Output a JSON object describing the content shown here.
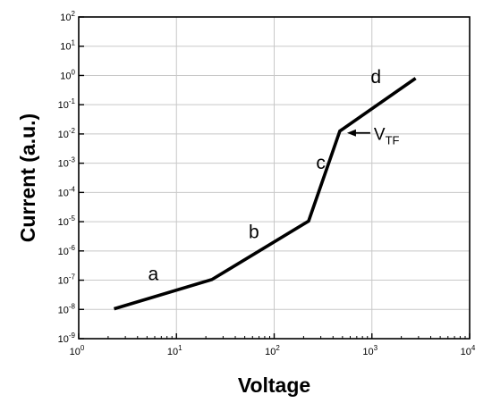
{
  "chart_data": {
    "type": "line",
    "xlabel": "Voltage",
    "ylabel": "Current (a.u.)",
    "x_scale": "log",
    "y_scale": "log",
    "xlim": [
      1,
      10000
    ],
    "ylim": [
      1e-09,
      100
    ],
    "grid": true,
    "x_ticks": [
      {
        "base": "10",
        "exp": "0",
        "value": 1
      },
      {
        "base": "10",
        "exp": "1",
        "value": 10
      },
      {
        "base": "10",
        "exp": "2",
        "value": 100
      },
      {
        "base": "10",
        "exp": "3",
        "value": 1000
      },
      {
        "base": "10",
        "exp": "4",
        "value": 10000
      }
    ],
    "y_ticks": [
      {
        "base": "10",
        "exp": "-9",
        "value": 1e-09
      },
      {
        "base": "10",
        "exp": "-8",
        "value": 1e-08
      },
      {
        "base": "10",
        "exp": "-7",
        "value": 1e-07
      },
      {
        "base": "10",
        "exp": "-6",
        "value": 1e-06
      },
      {
        "base": "10",
        "exp": "-5",
        "value": 1e-05
      },
      {
        "base": "10",
        "exp": "-4",
        "value": 0.0001
      },
      {
        "base": "10",
        "exp": "-3",
        "value": 0.001
      },
      {
        "base": "10",
        "exp": "-2",
        "value": 0.01
      },
      {
        "base": "10",
        "exp": "-1",
        "value": 0.1
      },
      {
        "base": "10",
        "exp": "0",
        "value": 1
      },
      {
        "base": "10",
        "exp": "1",
        "value": 10
      },
      {
        "base": "10",
        "exp": "2",
        "value": 100
      }
    ],
    "series": [
      {
        "points": [
          {
            "x": 2.3,
            "y": 1.05e-08
          },
          {
            "x": 23,
            "y": 1.05e-07
          },
          {
            "x": 225,
            "y": 1.05e-05
          },
          {
            "x": 470,
            "y": 0.0125
          },
          {
            "x": 2800,
            "y": 0.8
          }
        ]
      }
    ],
    "annotations": {
      "regions": [
        {
          "text": "a",
          "x": 5.8,
          "y": 1e-07
        },
        {
          "text": "b",
          "x": 62,
          "y": 2.7e-06
        },
        {
          "text": "c",
          "x": 300,
          "y": 0.00065
        },
        {
          "text": "d",
          "x": 1100,
          "y": 0.55
        }
      ],
      "transition": {
        "main": "V",
        "sub": "TF",
        "point_x": 470,
        "point_y": 0.0125
      }
    }
  }
}
